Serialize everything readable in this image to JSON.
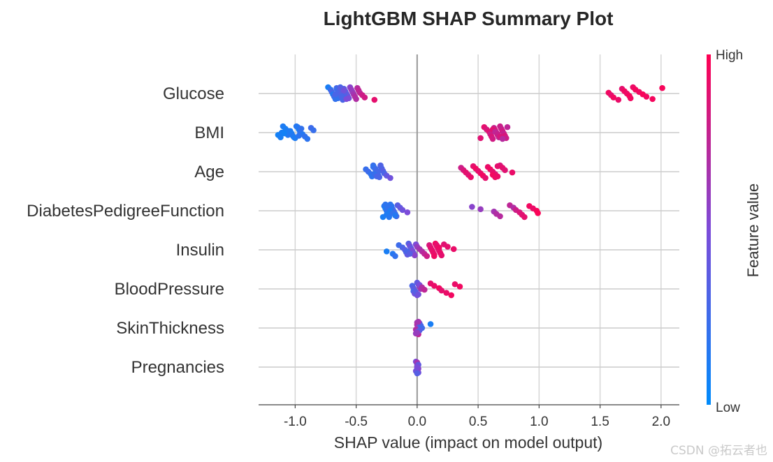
{
  "chart_data": {
    "type": "scatter",
    "title": "LightGBM SHAP Summary Plot",
    "xlabel": "SHAP value (impact on model output)",
    "xlim": [
      -1.3,
      2.15
    ],
    "xticks": [
      -1.0,
      -0.5,
      0.0,
      0.5,
      1.0,
      1.5,
      2.0
    ],
    "xtick_labels": [
      "-1.0",
      "-0.5",
      "0.0",
      "0.5",
      "1.0",
      "1.5",
      "2.0"
    ],
    "grid": true,
    "colorbar": {
      "title": "Feature value",
      "high_label": "High",
      "low_label": "Low",
      "low_color": "#008bfb",
      "mid_color": "#7c4cd9",
      "high_color": "#ff0052"
    },
    "features": [
      {
        "name": "Glucose",
        "points": [
          [
            -0.73,
            0.1
          ],
          [
            -0.71,
            0.2
          ],
          [
            -0.7,
            0.3
          ],
          [
            -0.69,
            0.15
          ],
          [
            -0.68,
            0.25
          ],
          [
            -0.67,
            0.2
          ],
          [
            -0.66,
            0.3
          ],
          [
            -0.65,
            0.25
          ],
          [
            -0.64,
            0.35
          ],
          [
            -0.63,
            0.3
          ],
          [
            -0.62,
            0.4
          ],
          [
            -0.61,
            0.3
          ],
          [
            -0.6,
            0.35
          ],
          [
            -0.59,
            0.4
          ],
          [
            -0.58,
            0.45
          ],
          [
            -0.57,
            0.4
          ],
          [
            -0.56,
            0.5
          ],
          [
            -0.55,
            0.55
          ],
          [
            -0.54,
            0.6
          ],
          [
            -0.53,
            0.6
          ],
          [
            -0.52,
            0.65
          ],
          [
            -0.51,
            0.7
          ],
          [
            -0.5,
            0.7
          ],
          [
            -0.49,
            0.72
          ],
          [
            -0.48,
            0.75
          ],
          [
            -0.47,
            0.75
          ],
          [
            -0.45,
            0.8
          ],
          [
            -0.43,
            0.82
          ],
          [
            -0.35,
            0.9
          ],
          [
            -0.66,
            0.25
          ],
          [
            -0.64,
            0.3
          ],
          [
            -0.62,
            0.35
          ],
          [
            -0.6,
            0.3
          ],
          [
            -0.65,
            0.2
          ],
          [
            -0.63,
            0.25
          ],
          [
            -0.61,
            0.4
          ],
          [
            -0.59,
            0.35
          ],
          [
            -0.67,
            0.3
          ],
          [
            -0.62,
            0.3
          ],
          [
            -0.58,
            0.5
          ],
          [
            -0.63,
            0.35
          ],
          [
            -0.6,
            0.45
          ],
          [
            1.57,
            0.95
          ],
          [
            1.59,
            0.9
          ],
          [
            1.61,
            0.95
          ],
          [
            1.65,
            0.92
          ],
          [
            1.68,
            0.9
          ],
          [
            1.7,
            0.95
          ],
          [
            1.72,
            0.93
          ],
          [
            1.74,
            0.97
          ],
          [
            1.75,
            0.95
          ],
          [
            1.77,
            0.93
          ],
          [
            1.79,
            0.96
          ],
          [
            1.82,
            0.94
          ],
          [
            1.85,
            0.97
          ],
          [
            1.88,
            0.95
          ],
          [
            1.93,
            0.96
          ],
          [
            2.01,
            0.97
          ]
        ]
      },
      {
        "name": "BMI",
        "points": [
          [
            -1.14,
            0.08
          ],
          [
            -1.12,
            0.1
          ],
          [
            -1.1,
            0.12
          ],
          [
            -1.08,
            0.1
          ],
          [
            -1.05,
            0.12
          ],
          [
            -1.03,
            0.1
          ],
          [
            -1.02,
            0.15
          ],
          [
            -1.0,
            0.12
          ],
          [
            -0.98,
            0.15
          ],
          [
            -0.97,
            0.1
          ],
          [
            -0.96,
            0.18
          ],
          [
            -0.94,
            0.15
          ],
          [
            -0.92,
            0.2
          ],
          [
            -0.9,
            0.18
          ],
          [
            -0.87,
            0.25
          ],
          [
            -0.85,
            0.22
          ],
          [
            -1.11,
            0.1
          ],
          [
            -1.06,
            0.15
          ],
          [
            -1.01,
            0.12
          ],
          [
            -0.99,
            0.15
          ],
          [
            -0.95,
            0.2
          ],
          [
            -1.04,
            0.12
          ],
          [
            -1.09,
            0.08
          ],
          [
            -0.97,
            0.18
          ],
          [
            0.52,
            0.88
          ],
          [
            0.55,
            0.9
          ],
          [
            0.57,
            0.85
          ],
          [
            0.59,
            0.88
          ],
          [
            0.6,
            0.8
          ],
          [
            0.61,
            0.85
          ],
          [
            0.62,
            0.82
          ],
          [
            0.63,
            0.78
          ],
          [
            0.64,
            0.85
          ],
          [
            0.65,
            0.8
          ],
          [
            0.66,
            0.82
          ],
          [
            0.67,
            0.75
          ],
          [
            0.68,
            0.8
          ],
          [
            0.69,
            0.78
          ],
          [
            0.7,
            0.82
          ],
          [
            0.71,
            0.78
          ],
          [
            0.72,
            0.85
          ],
          [
            0.73,
            0.8
          ],
          [
            0.74,
            0.75
          ],
          [
            0.62,
            0.88
          ],
          [
            0.64,
            0.75
          ],
          [
            0.66,
            0.78
          ],
          [
            0.68,
            0.85
          ],
          [
            0.7,
            0.72
          ]
        ]
      },
      {
        "name": "Age",
        "points": [
          [
            -0.42,
            0.22
          ],
          [
            -0.4,
            0.25
          ],
          [
            -0.38,
            0.2
          ],
          [
            -0.37,
            0.18
          ],
          [
            -0.36,
            0.22
          ],
          [
            -0.35,
            0.25
          ],
          [
            -0.34,
            0.2
          ],
          [
            -0.33,
            0.28
          ],
          [
            -0.32,
            0.22
          ],
          [
            -0.31,
            0.3
          ],
          [
            -0.3,
            0.25
          ],
          [
            -0.29,
            0.3
          ],
          [
            -0.28,
            0.35
          ],
          [
            -0.27,
            0.3
          ],
          [
            -0.25,
            0.4
          ],
          [
            -0.22,
            0.45
          ],
          [
            -0.36,
            0.2
          ],
          [
            -0.34,
            0.25
          ],
          [
            -0.32,
            0.28
          ],
          [
            -0.35,
            0.22
          ],
          [
            -0.33,
            0.3
          ],
          [
            -0.3,
            0.32
          ],
          [
            0.36,
            0.8
          ],
          [
            0.38,
            0.85
          ],
          [
            0.4,
            0.9
          ],
          [
            0.42,
            0.88
          ],
          [
            0.44,
            0.92
          ],
          [
            0.46,
            0.9
          ],
          [
            0.48,
            0.95
          ],
          [
            0.5,
            0.9
          ],
          [
            0.52,
            0.92
          ],
          [
            0.54,
            0.95
          ],
          [
            0.56,
            0.9
          ],
          [
            0.58,
            0.92
          ],
          [
            0.6,
            0.95
          ],
          [
            0.62,
            0.9
          ],
          [
            0.64,
            0.88
          ],
          [
            0.66,
            0.92
          ],
          [
            0.68,
            0.85
          ],
          [
            0.7,
            0.9
          ],
          [
            0.72,
            0.88
          ],
          [
            0.78,
            0.92
          ],
          [
            0.62,
            0.95
          ],
          [
            0.64,
            0.93
          ],
          [
            0.66,
            0.9
          ]
        ]
      },
      {
        "name": "DiabetesPedigreeFunction",
        "points": [
          [
            -0.28,
            0.1
          ],
          [
            -0.27,
            0.15
          ],
          [
            -0.26,
            0.12
          ],
          [
            -0.25,
            0.18
          ],
          [
            -0.24,
            0.15
          ],
          [
            -0.23,
            0.2
          ],
          [
            -0.22,
            0.18
          ],
          [
            -0.21,
            0.22
          ],
          [
            -0.2,
            0.25
          ],
          [
            -0.19,
            0.28
          ],
          [
            -0.18,
            0.25
          ],
          [
            -0.17,
            0.3
          ],
          [
            -0.16,
            0.35
          ],
          [
            -0.14,
            0.4
          ],
          [
            -0.12,
            0.45
          ],
          [
            -0.08,
            0.5
          ],
          [
            -0.25,
            0.12
          ],
          [
            -0.23,
            0.15
          ],
          [
            -0.21,
            0.18
          ],
          [
            -0.24,
            0.2
          ],
          [
            -0.22,
            0.12
          ],
          [
            -0.2,
            0.2
          ],
          [
            -0.18,
            0.15
          ],
          [
            -0.26,
            0.18
          ],
          [
            0.45,
            0.55
          ],
          [
            0.52,
            0.6
          ],
          [
            0.63,
            0.65
          ],
          [
            0.65,
            0.7
          ],
          [
            0.68,
            0.72
          ],
          [
            0.76,
            0.75
          ],
          [
            0.79,
            0.7
          ],
          [
            0.81,
            0.8
          ],
          [
            0.84,
            0.85
          ],
          [
            0.86,
            0.88
          ],
          [
            0.88,
            0.9
          ],
          [
            0.92,
            0.95
          ],
          [
            0.95,
            0.92
          ],
          [
            0.98,
            0.97
          ],
          [
            0.99,
            0.98
          ]
        ]
      },
      {
        "name": "Insulin",
        "points": [
          [
            -0.25,
            0.1
          ],
          [
            -0.2,
            0.15
          ],
          [
            -0.18,
            0.2
          ],
          [
            -0.15,
            0.25
          ],
          [
            -0.12,
            0.3
          ],
          [
            -0.1,
            0.35
          ],
          [
            -0.09,
            0.3
          ],
          [
            -0.08,
            0.4
          ],
          [
            -0.07,
            0.35
          ],
          [
            -0.06,
            0.45
          ],
          [
            -0.05,
            0.4
          ],
          [
            -0.04,
            0.5
          ],
          [
            -0.03,
            0.45
          ],
          [
            -0.02,
            0.55
          ],
          [
            -0.01,
            0.5
          ],
          [
            0.0,
            0.6
          ],
          [
            0.02,
            0.65
          ],
          [
            0.04,
            0.7
          ],
          [
            0.06,
            0.75
          ],
          [
            0.08,
            0.8
          ],
          [
            0.1,
            0.85
          ],
          [
            0.11,
            0.88
          ],
          [
            0.12,
            0.9
          ],
          [
            0.13,
            0.92
          ],
          [
            0.14,
            0.9
          ],
          [
            0.15,
            0.95
          ],
          [
            0.16,
            0.92
          ],
          [
            0.17,
            0.9
          ],
          [
            0.18,
            0.88
          ],
          [
            0.19,
            0.92
          ],
          [
            0.2,
            0.9
          ],
          [
            0.22,
            0.88
          ],
          [
            0.25,
            0.9
          ],
          [
            0.3,
            0.92
          ],
          [
            -0.08,
            0.3
          ],
          [
            -0.06,
            0.35
          ],
          [
            0.14,
            0.94
          ],
          [
            0.16,
            0.9
          ],
          [
            0.18,
            0.93
          ]
        ]
      },
      {
        "name": "BloodPressure",
        "points": [
          [
            -0.04,
            0.3
          ],
          [
            -0.03,
            0.35
          ],
          [
            -0.02,
            0.4
          ],
          [
            -0.01,
            0.45
          ],
          [
            0.0,
            0.5
          ],
          [
            0.01,
            0.55
          ],
          [
            0.02,
            0.6
          ],
          [
            0.03,
            0.65
          ],
          [
            -0.03,
            0.3
          ],
          [
            -0.02,
            0.45
          ],
          [
            0.0,
            0.4
          ],
          [
            0.02,
            0.5
          ],
          [
            0.04,
            0.7
          ],
          [
            0.06,
            0.75
          ],
          [
            -0.01,
            0.35
          ],
          [
            0.01,
            0.45
          ],
          [
            0.11,
            0.9
          ],
          [
            0.14,
            0.92
          ],
          [
            0.18,
            0.95
          ],
          [
            0.2,
            0.9
          ],
          [
            0.24,
            0.92
          ],
          [
            0.28,
            0.95
          ],
          [
            0.31,
            0.92
          ],
          [
            0.35,
            0.95
          ]
        ]
      },
      {
        "name": "SkinThickness",
        "points": [
          [
            -0.01,
            0.6
          ],
          [
            0.0,
            0.65
          ],
          [
            0.0,
            0.7
          ],
          [
            0.01,
            0.55
          ],
          [
            -0.01,
            0.7
          ],
          [
            0.0,
            0.5
          ],
          [
            0.01,
            0.75
          ],
          [
            0.02,
            0.4
          ],
          [
            0.03,
            0.3
          ],
          [
            0.04,
            0.25
          ],
          [
            0.02,
            0.35
          ],
          [
            0.0,
            0.6
          ],
          [
            0.01,
            0.65
          ],
          [
            0.11,
            0.1
          ]
        ]
      },
      {
        "name": "Pregnancies",
        "points": [
          [
            0.0,
            0.5
          ],
          [
            0.0,
            0.55
          ],
          [
            0.01,
            0.45
          ],
          [
            -0.01,
            0.5
          ],
          [
            0.0,
            0.4
          ],
          [
            0.0,
            0.6
          ],
          [
            0.01,
            0.55
          ],
          [
            -0.01,
            0.45
          ],
          [
            0.0,
            0.35
          ],
          [
            0.0,
            0.65
          ],
          [
            0.01,
            0.4
          ],
          [
            0.0,
            0.5
          ]
        ]
      }
    ]
  },
  "watermark": "CSDN @拓云者也"
}
